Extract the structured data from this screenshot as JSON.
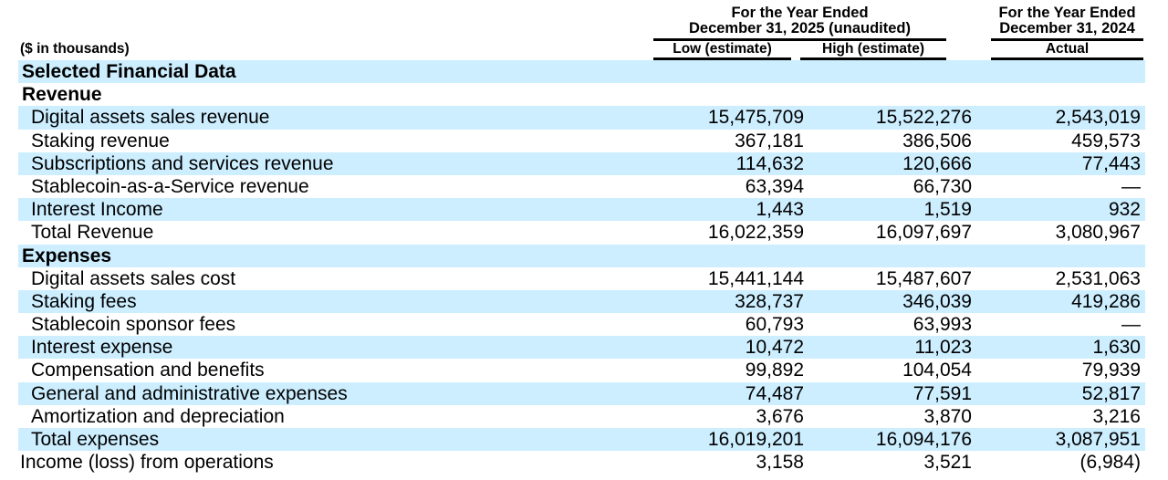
{
  "document": {
    "units_label": "($ in thousands)",
    "header": {
      "group_2025_line1": "For the Year Ended",
      "group_2025_line2": "December 31, 2025 (unaudited)",
      "group_2024_line1": "For the Year Ended",
      "group_2024_line2": "December 31, 2024",
      "col_low": "Low (estimate)",
      "col_high": "High (estimate)",
      "col_actual": "Actual"
    }
  },
  "colors": {
    "row_highlight": "#cceeff",
    "text": "#000000",
    "rule": "#000000",
    "page_background": "#ffffff"
  },
  "chart_data": {
    "type": "table",
    "title": "Selected Financial Data",
    "columns": [
      "Low (estimate)",
      "High (estimate)",
      "Actual"
    ],
    "rows": [
      {
        "label": "Selected Financial Data",
        "low": "",
        "high": "",
        "actual": ""
      },
      {
        "label": "Revenue",
        "low": "",
        "high": "",
        "actual": ""
      },
      {
        "label": "Digital assets sales revenue",
        "low": "15,475,709",
        "high": "15,522,276",
        "actual": "2,543,019"
      },
      {
        "label": "Staking revenue",
        "low": "367,181",
        "high": "386,506",
        "actual": "459,573"
      },
      {
        "label": "Subscriptions and services revenue",
        "low": "114,632",
        "high": "120,666",
        "actual": "77,443"
      },
      {
        "label": "Stablecoin-as-a-Service revenue",
        "low": "63,394",
        "high": "66,730",
        "actual": "—"
      },
      {
        "label": "Interest Income",
        "low": "1,443",
        "high": "1,519",
        "actual": "932"
      },
      {
        "label": "Total Revenue",
        "low": "16,022,359",
        "high": "16,097,697",
        "actual": "3,080,967"
      },
      {
        "label": "Expenses",
        "low": "",
        "high": "",
        "actual": ""
      },
      {
        "label": "Digital assets sales cost",
        "low": "15,441,144",
        "high": "15,487,607",
        "actual": "2,531,063"
      },
      {
        "label": "Staking fees",
        "low": "328,737",
        "high": "346,039",
        "actual": "419,286"
      },
      {
        "label": "Stablecoin sponsor fees",
        "low": "60,793",
        "high": "63,993",
        "actual": "—"
      },
      {
        "label": "Interest expense",
        "low": "10,472",
        "high": "11,023",
        "actual": "1,630"
      },
      {
        "label": "Compensation and benefits",
        "low": "99,892",
        "high": "104,054",
        "actual": "79,939"
      },
      {
        "label": "General and administrative expenses",
        "low": "74,487",
        "high": "77,591",
        "actual": "52,817"
      },
      {
        "label": "Amortization and depreciation",
        "low": "3,676",
        "high": "3,870",
        "actual": "3,216"
      },
      {
        "label": "Total expenses",
        "low": "16,019,201",
        "high": "16,094,176",
        "actual": "3,087,951"
      },
      {
        "label": "Income (loss) from operations",
        "low": "3,158",
        "high": "3,521",
        "actual": "(6,984)"
      }
    ]
  }
}
